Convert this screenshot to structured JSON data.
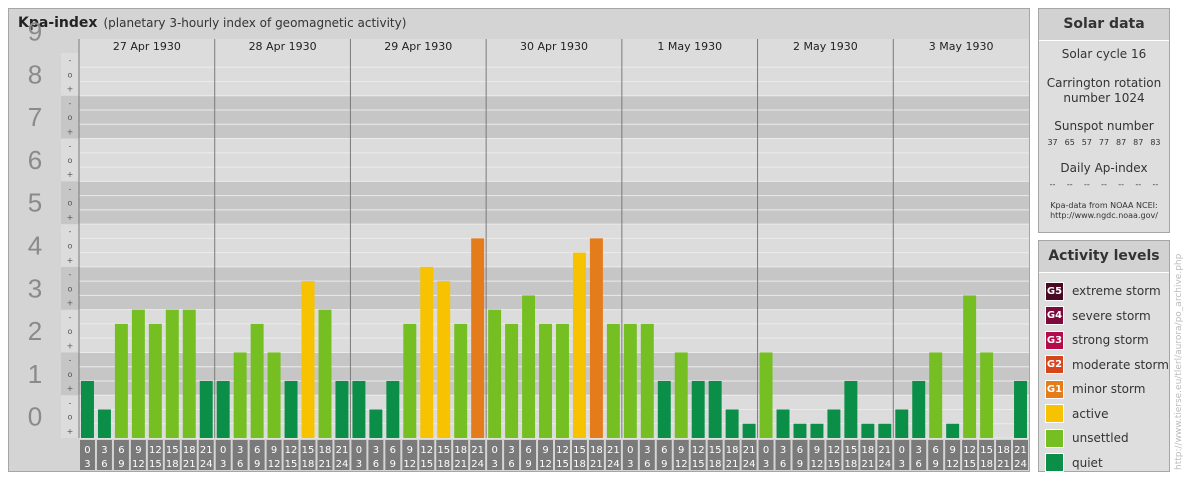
{
  "header": {
    "title": "Kpa-index",
    "subtitle": "(planetary 3-hourly index of geomagnetic activity)"
  },
  "chart_data": {
    "type": "bar",
    "ylim": [
      0,
      9
    ],
    "y_ticks": [
      "0",
      "1",
      "2",
      "3",
      "4",
      "5",
      "6",
      "7",
      "8",
      "9"
    ],
    "sub_ticks": [
      "+",
      "o",
      "-"
    ],
    "days": [
      "27 Apr 1930",
      "28 Apr 1930",
      "29 Apr 1930",
      "30 Apr 1930",
      "1 May 1930",
      "2 May 1930",
      "3 May 1930"
    ],
    "interval_labels": [
      [
        "0",
        "3"
      ],
      [
        "3",
        "6"
      ],
      [
        "6",
        "9"
      ],
      [
        "9",
        "12"
      ],
      [
        "12",
        "15"
      ],
      [
        "15",
        "18"
      ],
      [
        "18",
        "21"
      ],
      [
        "21",
        "24"
      ]
    ],
    "values": [
      1.333,
      0.667,
      2.667,
      3.0,
      2.667,
      3.0,
      3.0,
      1.333,
      1.333,
      2.0,
      2.667,
      2.0,
      1.333,
      3.667,
      3.0,
      1.333,
      1.333,
      0.667,
      1.333,
      2.667,
      4.0,
      3.667,
      2.667,
      4.667,
      3.0,
      2.667,
      3.333,
      2.667,
      2.667,
      4.333,
      4.667,
      2.667,
      2.667,
      2.667,
      1.333,
      2.0,
      1.333,
      1.333,
      0.667,
      0.333,
      2.0,
      0.667,
      0.333,
      0.333,
      0.667,
      1.333,
      0.333,
      0.333,
      0.667,
      1.333,
      2.0,
      0.333,
      3.333,
      2.0,
      0.0,
      1.333
    ],
    "colors": {
      "quiet": "#0b8f48",
      "unsettled": "#76bf23",
      "active": "#f7c200",
      "minor": "#e57c1c",
      "moderate": "#d6461e",
      "strong": "#b40c4b",
      "severe": "#7c0a3d",
      "extreme": "#4a0822"
    }
  },
  "solar": {
    "title": "Solar data",
    "cycle": "Solar cycle 16",
    "carrington_line1": "Carrington rotation",
    "carrington_line2": "number 1024",
    "sunspot_title": "Sunspot number",
    "sunspots": [
      "37",
      "65",
      "57",
      "77",
      "87",
      "87",
      "83"
    ],
    "ap_title": "Daily Ap-index",
    "ap_values": [
      "--",
      "--",
      "--",
      "--",
      "--",
      "--",
      "--"
    ],
    "note_line1": "Kpa-data from NOAA NCEI:",
    "note_line2": "http://www.ngdc.noaa.gov/"
  },
  "legend": {
    "title": "Activity levels",
    "items": [
      {
        "badge": "G5",
        "label": "extreme storm",
        "color": "#4a0822"
      },
      {
        "badge": "G4",
        "label": "severe storm",
        "color": "#7c0a3d"
      },
      {
        "badge": "G3",
        "label": "strong storm",
        "color": "#b40c4b"
      },
      {
        "badge": "G2",
        "label": "moderate storm",
        "color": "#d6461e"
      },
      {
        "badge": "G1",
        "label": "minor storm",
        "color": "#e57c1c"
      },
      {
        "badge": "",
        "label": "active",
        "color": "#f7c200"
      },
      {
        "badge": "",
        "label": "unsettled",
        "color": "#76bf23"
      },
      {
        "badge": "",
        "label": "quiet",
        "color": "#0b8f48"
      }
    ]
  },
  "watermark": "http://www.tierse.eu/tlerl/aurora/po_archive.php"
}
